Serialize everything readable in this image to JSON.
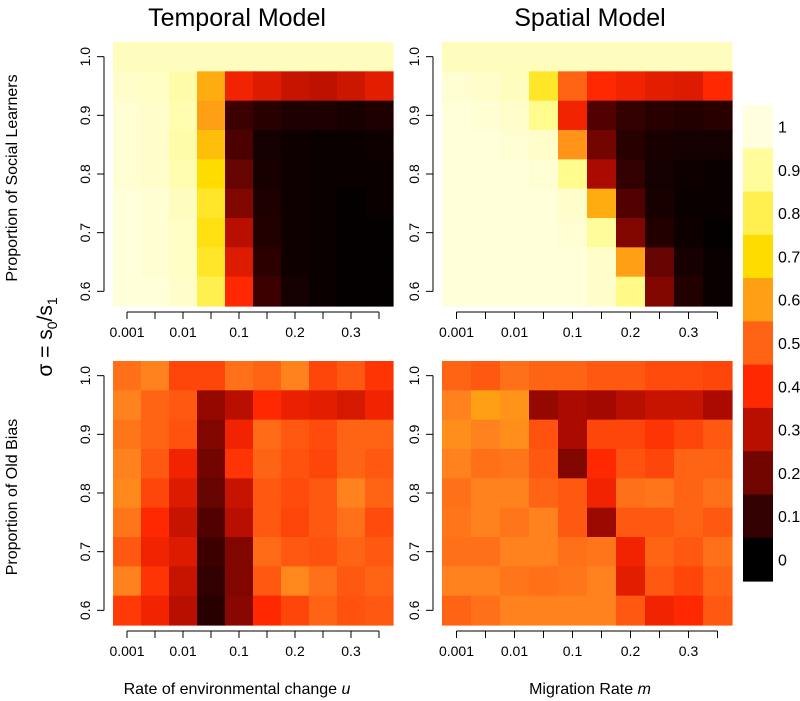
{
  "figure": {
    "titles": {
      "left": "Temporal Model",
      "right": "Spatial Model"
    },
    "row_labels": {
      "top": "Proportion of Social Learners",
      "bottom": "Proportion of Old Bias"
    },
    "sigma_label": {
      "main": "σ = s",
      "sub0": "0",
      "slash": "/s",
      "sub1": "1"
    },
    "x_labels": {
      "left": {
        "text": "Rate of environmental change ",
        "var": "u"
      },
      "right": {
        "text": "Migration Rate ",
        "var": "m"
      }
    },
    "x_tick_labels": [
      "0.001",
      "0.01",
      "0.1",
      "0.2",
      "0.3"
    ],
    "y_tick_labels": [
      "1.0",
      "0.9",
      "0.8",
      "0.7",
      "0.6"
    ],
    "legend": {
      "ticks": [
        "1",
        "0.9",
        "0.8",
        "0.7",
        "0.6",
        "0.5",
        "0.4",
        "0.3",
        "0.2",
        "0.1",
        "0"
      ]
    },
    "colors": {
      "colormap": "heat",
      "low": "#000000",
      "high": "#ffffe0"
    }
  },
  "chart_data": [
    {
      "type": "heatmap",
      "title": "Temporal Model",
      "ylabel": "Proportion of Social Learners",
      "xlabel": "",
      "x_tick_labels": [
        "0.001",
        "0.01",
        "0.1",
        "0.2",
        "0.3"
      ],
      "y": [
        1.0,
        0.95,
        0.9,
        0.85,
        0.8,
        0.75,
        0.7,
        0.65,
        0.6
      ],
      "z": [
        [
          0.95,
          0.95,
          0.95,
          0.95,
          0.95,
          0.95,
          0.95,
          0.95,
          0.95,
          0.95
        ],
        [
          0.97,
          0.96,
          0.92,
          0.62,
          0.38,
          0.35,
          0.32,
          0.31,
          0.33,
          0.36
        ],
        [
          0.98,
          0.97,
          0.93,
          0.6,
          0.12,
          0.08,
          0.06,
          0.06,
          0.05,
          0.06
        ],
        [
          0.98,
          0.97,
          0.92,
          0.65,
          0.14,
          0.04,
          0.03,
          0.02,
          0.02,
          0.03
        ],
        [
          0.98,
          0.97,
          0.93,
          0.7,
          0.18,
          0.05,
          0.03,
          0.02,
          0.02,
          0.02
        ],
        [
          0.99,
          0.98,
          0.95,
          0.75,
          0.22,
          0.06,
          0.03,
          0.02,
          0.01,
          0.02
        ],
        [
          0.99,
          0.98,
          0.96,
          0.72,
          0.3,
          0.07,
          0.03,
          0.02,
          0.01,
          0.01
        ],
        [
          0.99,
          0.98,
          0.96,
          0.75,
          0.35,
          0.09,
          0.03,
          0.02,
          0.01,
          0.01
        ],
        [
          0.99,
          0.99,
          0.97,
          0.8,
          0.4,
          0.12,
          0.04,
          0.02,
          0.01,
          0.01
        ]
      ]
    },
    {
      "type": "heatmap",
      "title": "Spatial Model",
      "ylabel": "Proportion of Social Learners",
      "xlabel": "",
      "x_tick_labels": [
        "0.001",
        "0.01",
        "0.1",
        "0.2",
        "0.3"
      ],
      "y": [
        1.0,
        0.95,
        0.9,
        0.85,
        0.8,
        0.75,
        0.7,
        0.65,
        0.6
      ],
      "z": [
        [
          0.95,
          0.95,
          0.95,
          0.95,
          0.95,
          0.95,
          0.95,
          0.95,
          0.95,
          0.95
        ],
        [
          0.98,
          0.97,
          0.95,
          0.75,
          0.5,
          0.4,
          0.38,
          0.36,
          0.35,
          0.4
        ],
        [
          0.99,
          0.98,
          0.97,
          0.88,
          0.38,
          0.15,
          0.1,
          0.08,
          0.07,
          0.08
        ],
        [
          0.99,
          0.99,
          0.98,
          0.97,
          0.58,
          0.2,
          0.08,
          0.05,
          0.04,
          0.04
        ],
        [
          0.99,
          0.99,
          0.99,
          0.98,
          0.88,
          0.28,
          0.1,
          0.04,
          0.03,
          0.02
        ],
        [
          0.99,
          0.99,
          0.99,
          0.99,
          0.97,
          0.62,
          0.15,
          0.05,
          0.02,
          0.02
        ],
        [
          0.99,
          0.99,
          0.99,
          0.99,
          0.98,
          0.9,
          0.22,
          0.07,
          0.03,
          0.01
        ],
        [
          0.99,
          0.99,
          0.99,
          0.99,
          0.99,
          0.97,
          0.6,
          0.18,
          0.05,
          0.02
        ],
        [
          0.99,
          0.99,
          0.99,
          0.99,
          0.99,
          0.97,
          0.87,
          0.22,
          0.07,
          0.02
        ]
      ]
    },
    {
      "type": "heatmap",
      "title": "",
      "ylabel": "Proportion of Old Bias",
      "xlabel": "Rate of environmental change u",
      "x_tick_labels": [
        "0.001",
        "0.01",
        "0.1",
        "0.2",
        "0.3"
      ],
      "y": [
        1.0,
        0.95,
        0.9,
        0.85,
        0.8,
        0.75,
        0.7,
        0.65,
        0.6
      ],
      "z": [
        [
          0.52,
          0.55,
          0.45,
          0.45,
          0.52,
          0.5,
          0.55,
          0.45,
          0.48,
          0.42
        ],
        [
          0.55,
          0.5,
          0.48,
          0.25,
          0.3,
          0.4,
          0.37,
          0.36,
          0.34,
          0.38
        ],
        [
          0.53,
          0.5,
          0.47,
          0.22,
          0.38,
          0.51,
          0.48,
          0.46,
          0.5,
          0.5
        ],
        [
          0.55,
          0.48,
          0.38,
          0.2,
          0.42,
          0.5,
          0.47,
          0.45,
          0.5,
          0.48
        ],
        [
          0.56,
          0.45,
          0.35,
          0.18,
          0.32,
          0.48,
          0.46,
          0.48,
          0.55,
          0.5
        ],
        [
          0.53,
          0.4,
          0.32,
          0.15,
          0.3,
          0.48,
          0.45,
          0.48,
          0.52,
          0.46
        ],
        [
          0.48,
          0.38,
          0.35,
          0.12,
          0.22,
          0.51,
          0.48,
          0.47,
          0.5,
          0.48
        ],
        [
          0.55,
          0.42,
          0.32,
          0.1,
          0.22,
          0.48,
          0.56,
          0.52,
          0.48,
          0.5
        ],
        [
          0.43,
          0.38,
          0.3,
          0.08,
          0.23,
          0.4,
          0.45,
          0.5,
          0.47,
          0.48
        ]
      ]
    },
    {
      "type": "heatmap",
      "title": "",
      "ylabel": "Proportion of Old Bias",
      "xlabel": "Migration Rate m",
      "x_tick_labels": [
        "0.001",
        "0.01",
        "0.1",
        "0.2",
        "0.3"
      ],
      "y": [
        1.0,
        0.95,
        0.9,
        0.85,
        0.8,
        0.75,
        0.7,
        0.65,
        0.6
      ],
      "z": [
        [
          0.5,
          0.48,
          0.52,
          0.5,
          0.5,
          0.48,
          0.48,
          0.46,
          0.46,
          0.45
        ],
        [
          0.55,
          0.6,
          0.58,
          0.25,
          0.28,
          0.27,
          0.3,
          0.32,
          0.32,
          0.28
        ],
        [
          0.57,
          0.55,
          0.57,
          0.47,
          0.28,
          0.45,
          0.45,
          0.42,
          0.45,
          0.48
        ],
        [
          0.55,
          0.52,
          0.53,
          0.48,
          0.22,
          0.4,
          0.47,
          0.45,
          0.5,
          0.5
        ],
        [
          0.52,
          0.55,
          0.55,
          0.5,
          0.48,
          0.38,
          0.52,
          0.53,
          0.5,
          0.52
        ],
        [
          0.53,
          0.55,
          0.53,
          0.55,
          0.48,
          0.26,
          0.48,
          0.48,
          0.5,
          0.48
        ],
        [
          0.52,
          0.52,
          0.55,
          0.55,
          0.52,
          0.53,
          0.38,
          0.5,
          0.48,
          0.52
        ],
        [
          0.55,
          0.55,
          0.53,
          0.52,
          0.53,
          0.55,
          0.36,
          0.48,
          0.45,
          0.5
        ],
        [
          0.5,
          0.52,
          0.55,
          0.55,
          0.55,
          0.55,
          0.48,
          0.38,
          0.4,
          0.48
        ]
      ]
    }
  ]
}
